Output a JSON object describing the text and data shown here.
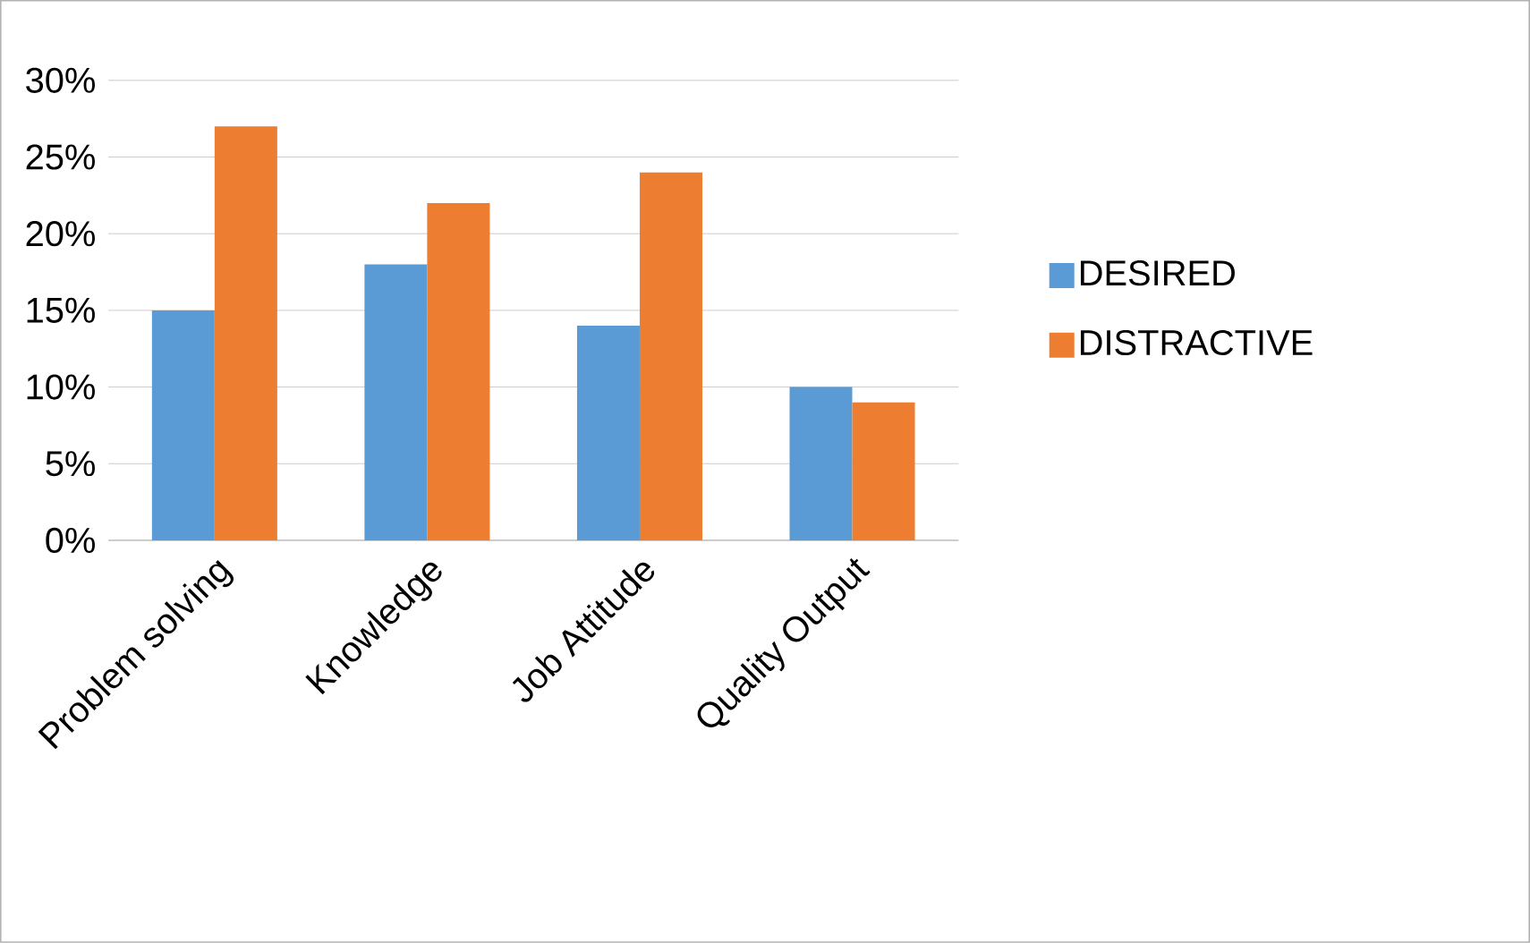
{
  "chart_data": {
    "type": "bar",
    "categories": [
      "Problem solving",
      "Knowledge",
      "Job Attitude",
      "Quality Output"
    ],
    "series": [
      {
        "name": "DESIRED",
        "color": "#5b9bd5",
        "values": [
          15,
          18,
          14,
          10
        ]
      },
      {
        "name": "DISTRACTIVE",
        "color": "#ed7d31",
        "values": [
          27,
          22,
          24,
          9
        ]
      }
    ],
    "ylim": [
      0,
      30
    ],
    "yticks": [
      {
        "value": 0,
        "label": "0%"
      },
      {
        "value": 5,
        "label": "5%"
      },
      {
        "value": 10,
        "label": "10%"
      },
      {
        "value": 15,
        "label": "15%"
      },
      {
        "value": 20,
        "label": "20%"
      },
      {
        "value": 25,
        "label": "25%"
      },
      {
        "value": 30,
        "label": "30%"
      }
    ],
    "grid": "y",
    "legend": "right"
  }
}
